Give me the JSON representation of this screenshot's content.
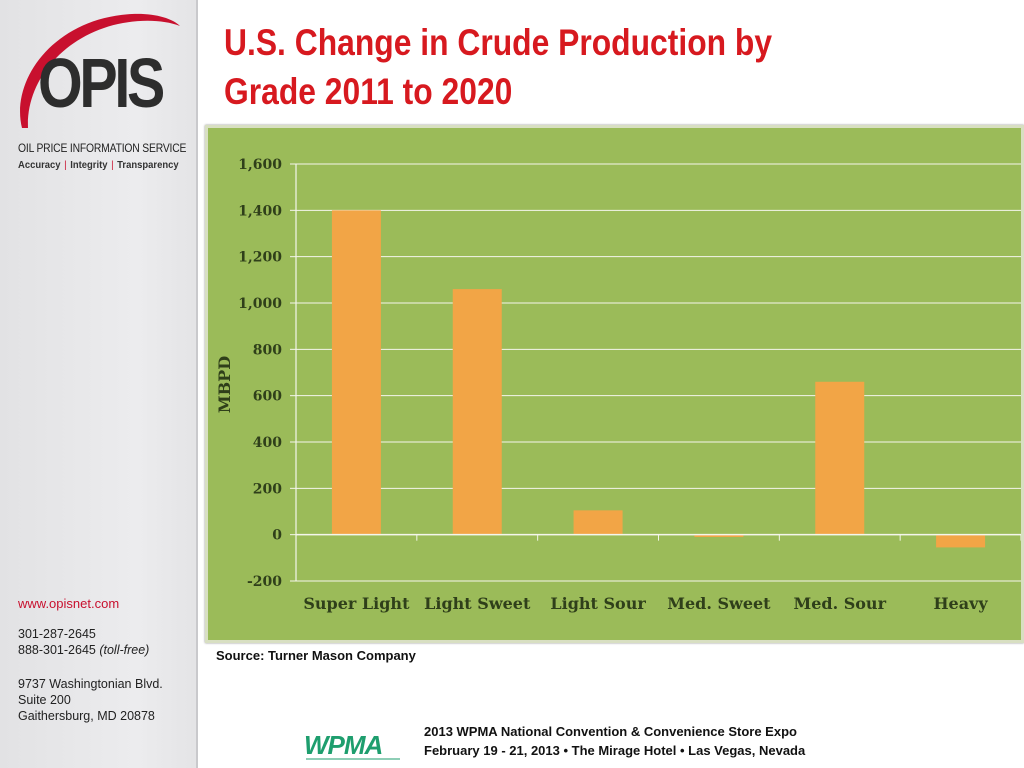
{
  "sidebar": {
    "logo_text": "OPIS",
    "tagline": "OIL PRICE INFORMATION SERVICE",
    "values": [
      "Accuracy",
      "Integrity",
      "Transparency"
    ],
    "separator": "|",
    "website": "www.opisnet.com",
    "phone": "301-287-2645",
    "phone_tollfree": "888-301-2645",
    "tollfree_label": "(toll-free)",
    "address_line1": "9737 Washingtonian Blvd.",
    "address_line2": "Suite 200",
    "address_line3": "Gaithersburg, MD 20878"
  },
  "title_line1": "U.S. Change in Crude Production by",
  "title_line2": "Grade 2011 to 2020",
  "source": "Source: Turner Mason Company",
  "footer": {
    "logo_text": "WPMA",
    "line1": "2013 WPMA National Convention & Convenience Store Expo",
    "line2": "February 19 - 21, 2013 • The Mirage Hotel • Las Vegas, Nevada"
  },
  "colors": {
    "title": "#d7191f",
    "chart_bg": "#9bbb59",
    "bar": "#f2a546",
    "accent_red": "#c8102e",
    "wpma_green": "#1e9e6e"
  },
  "chart_data": {
    "type": "bar",
    "categories": [
      "Super Light",
      "Light Sweet",
      "Light Sour",
      "Med. Sweet",
      "Med. Sour",
      "Heavy"
    ],
    "values": [
      1400,
      1060,
      105,
      -10,
      660,
      -55
    ],
    "ylabel": "MBPD",
    "ylim": [
      -200,
      1600
    ],
    "yticks": [
      -200,
      0,
      200,
      400,
      600,
      800,
      1000,
      1200,
      1400,
      1600
    ],
    "ytick_labels": [
      "-200",
      "0",
      "200",
      "400",
      "600",
      "800",
      "1,000",
      "1,200",
      "1,400",
      "1,600"
    ],
    "grid": true
  }
}
